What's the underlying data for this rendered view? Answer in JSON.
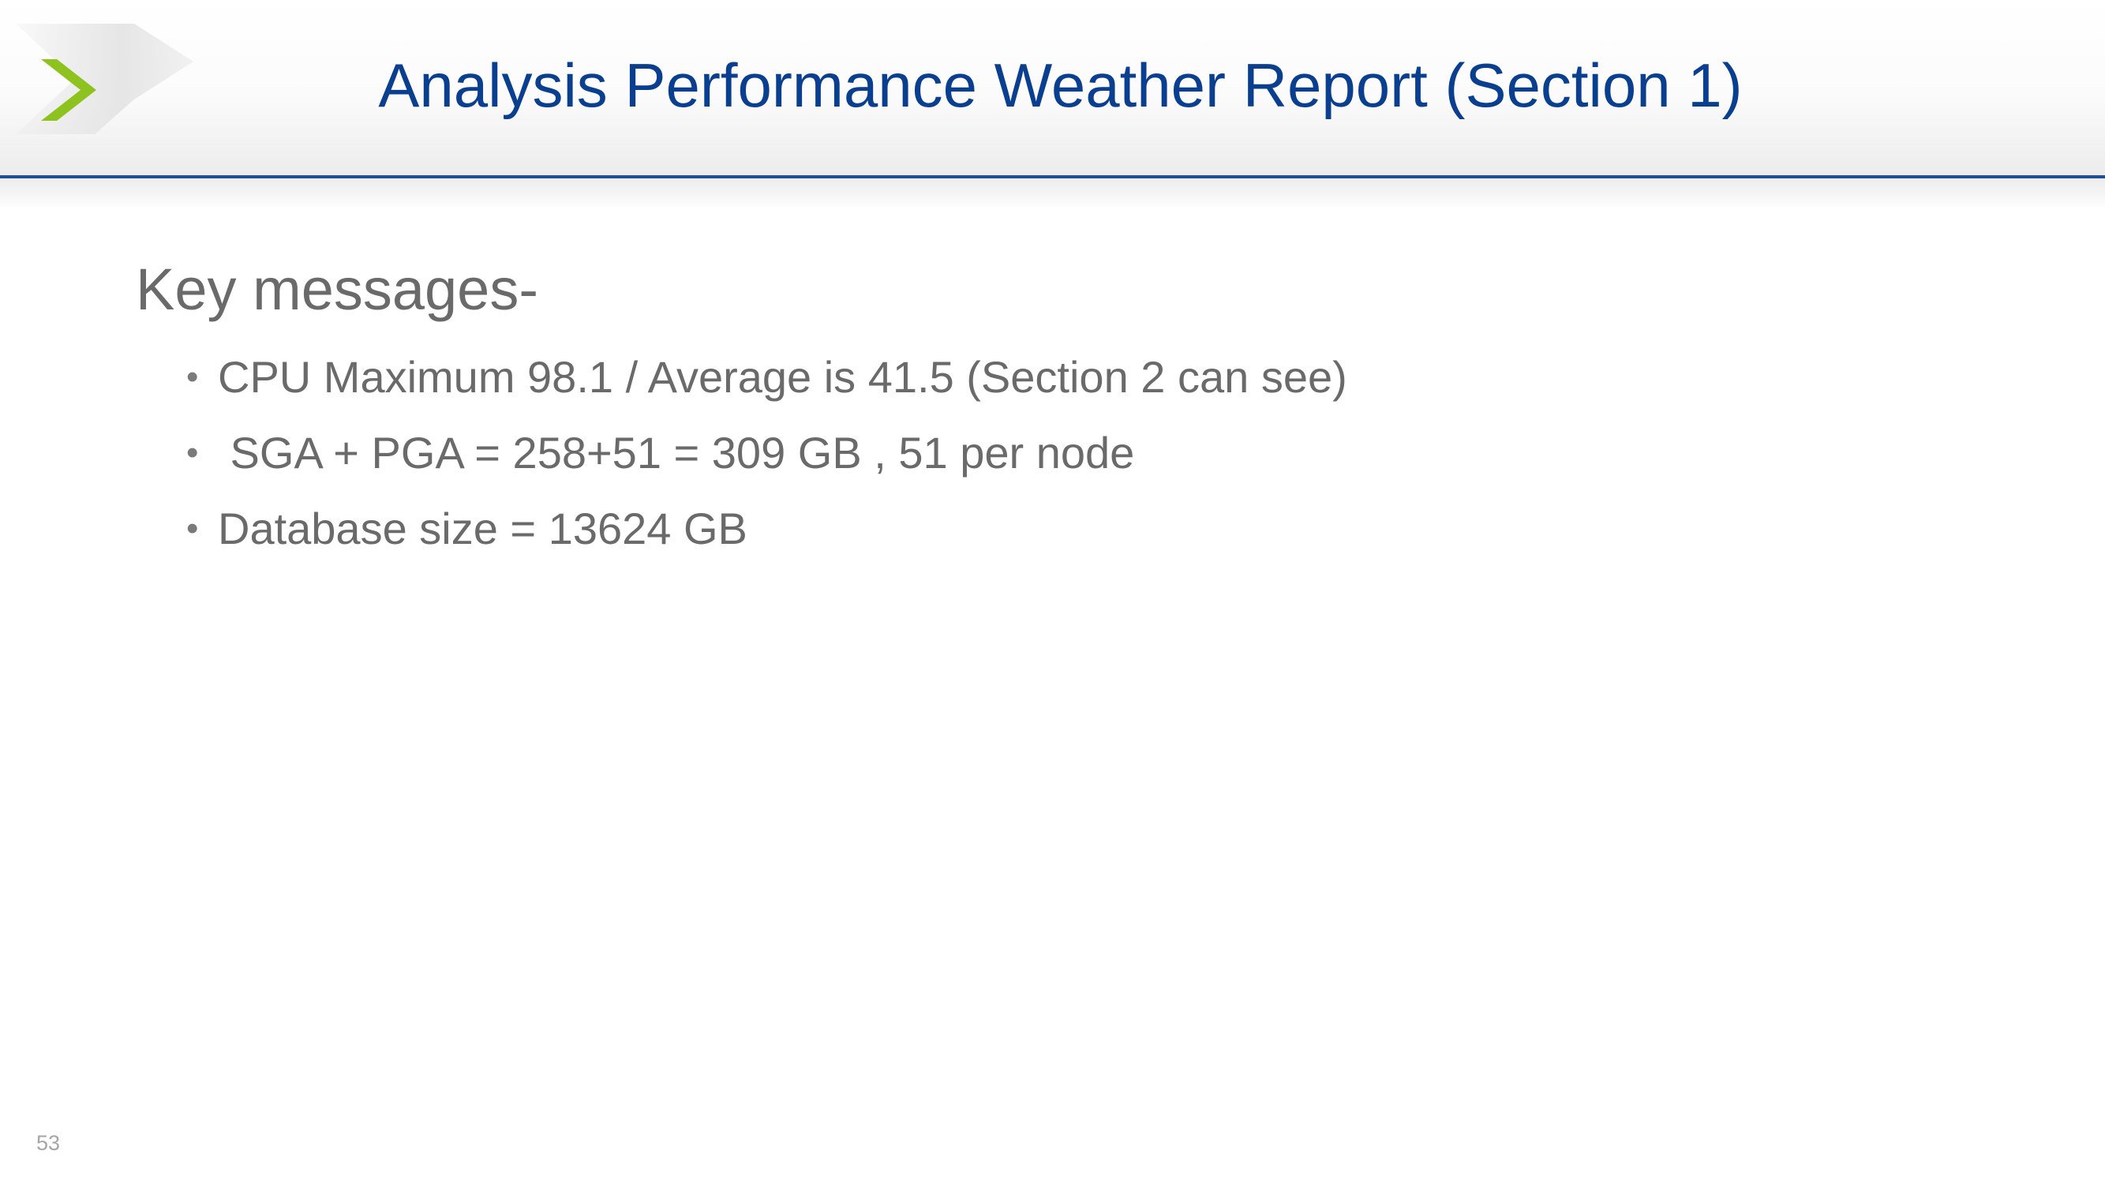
{
  "slide": {
    "title": "Analysis Performance Weather Report (Section 1)",
    "heading": "Key messages-",
    "bullets": [
      "CPU Maximum 98.1 / Average is 41.5 (Section 2 can see)",
      " SGA + PGA = 258+51 = 309 GB , 51 per node",
      "Database size = 13624 GB"
    ],
    "page_number": "53"
  },
  "theme": {
    "title_color": "#0a3f8f",
    "accent_green": "#8dc21f",
    "rule_color": "#1f4e96",
    "text_gray": "#6a6a6a"
  },
  "icons": {
    "logo": "chevron-right-icon"
  }
}
